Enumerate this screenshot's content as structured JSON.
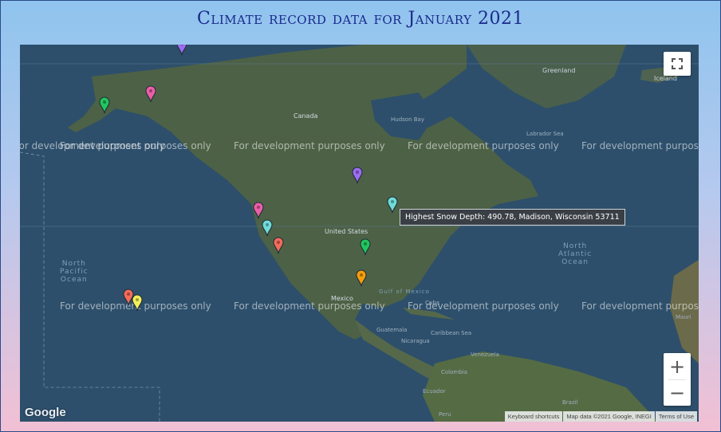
{
  "page": {
    "title": "Climate record data for January 2021"
  },
  "map": {
    "watermark": "For development purposes only",
    "tooltip": "Highest Snow Depth: 490.78, Madison, Wisconsin 53711",
    "labels": {
      "greenland": "Greenland",
      "iceland": "Iceland",
      "canada": "Canada",
      "hudson_bay": "Hudson Bay",
      "labrador_sea": "Labrador Sea",
      "united_states": "United States",
      "mexico": "Mexico",
      "gulf": "Gulf of\nMexico",
      "north_pacific": "North\nPacific\nOcean",
      "north_atlantic": "North\nAtlantic\nOcean",
      "cuba": "Cuba",
      "guatemala": "Guatemala",
      "nicaragua": "Nicaragua",
      "caribbean": "Caribbean Sea",
      "venezuela": "Venezuela",
      "colombia": "Colombia",
      "ecuador": "Ecuador",
      "peru": "Peru",
      "brazil": "Brazil",
      "mauritania": "Mauri"
    },
    "markers": [
      {
        "name": "alaska-west",
        "color": "#22c55e"
      },
      {
        "name": "alaska-east",
        "color": "#ec5fa8"
      },
      {
        "name": "top-edge",
        "color": "#9b6cf0"
      },
      {
        "name": "north-dakota",
        "color": "#9b6cf0"
      },
      {
        "name": "wisconsin",
        "color": "#6fdcd8"
      },
      {
        "name": "oregon",
        "color": "#ec5fa8"
      },
      {
        "name": "california-north",
        "color": "#6fdcd8"
      },
      {
        "name": "california-south",
        "color": "#f26b5b"
      },
      {
        "name": "tennessee",
        "color": "#22c55e"
      },
      {
        "name": "texas",
        "color": "#f59e0b"
      },
      {
        "name": "hawaii-west",
        "color": "#f26b5b"
      },
      {
        "name": "hawaii-east",
        "color": "#f3ef5a"
      }
    ],
    "controls": {
      "zoom_in": "+",
      "zoom_out": "−",
      "logo": "Google"
    },
    "attribution": {
      "keyboard": "Keyboard shortcuts",
      "map_data": "Map data ©2021 Google, INEGI",
      "terms": "Terms of Use"
    }
  }
}
